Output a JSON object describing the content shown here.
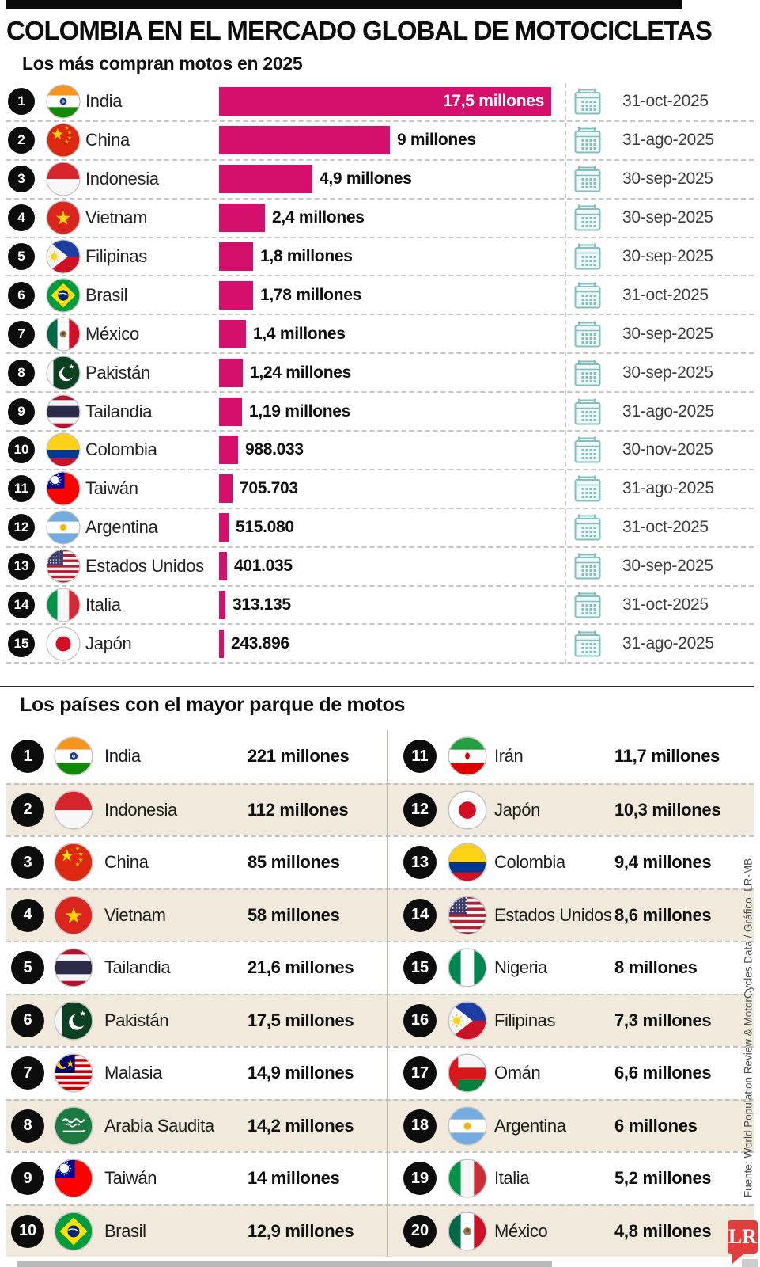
{
  "header": {
    "title": "COLOMBIA EN EL MERCADO GLOBAL DE MOTOCICLETAS"
  },
  "colors": {
    "bar": "#d4106c",
    "calendar_icon": "#7fc0c2",
    "row_alt_background": "#f0e9dc",
    "rank_badge": "#0c0c0c",
    "logo_red": "#e23d3d"
  },
  "chart_data": [
    {
      "type": "bar",
      "title": "Los más compran motos en 2025",
      "orientation": "horizontal",
      "value_axis_max": 17500000,
      "grid": false,
      "rows": [
        {
          "rank": 1,
          "country": "India",
          "flag": "india",
          "value": 17500000,
          "label": "17,5 millones",
          "label_inside": true,
          "date": "31-oct-2025"
        },
        {
          "rank": 2,
          "country": "China",
          "flag": "china",
          "value": 9000000,
          "label": "9 millones",
          "date": "31-ago-2025"
        },
        {
          "rank": 3,
          "country": "Indonesia",
          "flag": "indonesia",
          "value": 4900000,
          "label": "4,9 millones",
          "date": "30-sep-2025"
        },
        {
          "rank": 4,
          "country": "Vietnam",
          "flag": "vietnam",
          "value": 2400000,
          "label": "2,4 millones",
          "date": "30-sep-2025"
        },
        {
          "rank": 5,
          "country": "Filipinas",
          "flag": "philippines",
          "value": 1800000,
          "label": "1,8 millones",
          "date": "30-sep-2025"
        },
        {
          "rank": 6,
          "country": "Brasil",
          "flag": "brazil",
          "value": 1780000,
          "label": "1,78 millones",
          "date": "31-oct-2025"
        },
        {
          "rank": 7,
          "country": "México",
          "flag": "mexico",
          "value": 1400000,
          "label": "1,4 millones",
          "date": "30-sep-2025"
        },
        {
          "rank": 8,
          "country": "Pakistán",
          "flag": "pakistan",
          "value": 1240000,
          "label": "1,24 millones",
          "date": "30-sep-2025"
        },
        {
          "rank": 9,
          "country": "Tailandia",
          "flag": "thailand",
          "value": 1190000,
          "label": "1,19 millones",
          "date": "31-ago-2025"
        },
        {
          "rank": 10,
          "country": "Colombia",
          "flag": "colombia",
          "value": 988033,
          "label": "988.033",
          "date": "30-nov-2025"
        },
        {
          "rank": 11,
          "country": "Taiwán",
          "flag": "taiwan",
          "value": 705703,
          "label": "705.703",
          "date": "31-ago-2025"
        },
        {
          "rank": 12,
          "country": "Argentina",
          "flag": "argentina",
          "value": 515080,
          "label": "515.080",
          "date": "31-oct-2025"
        },
        {
          "rank": 13,
          "country": "Estados Unidos",
          "flag": "usa",
          "value": 401035,
          "label": "401.035",
          "date": "30-sep-2025"
        },
        {
          "rank": 14,
          "country": "Italia",
          "flag": "italy",
          "value": 313135,
          "label": "313.135",
          "date": "31-oct-2025"
        },
        {
          "rank": 15,
          "country": "Japón",
          "flag": "japan",
          "value": 243896,
          "label": "243.896",
          "date": "31-ago-2025"
        }
      ]
    },
    {
      "type": "table",
      "title": "Los países con el mayor parque de motos",
      "rows_left": [
        {
          "rank": 1,
          "country": "India",
          "flag": "india",
          "value_millions": 221,
          "label": "221 millones"
        },
        {
          "rank": 2,
          "country": "Indonesia",
          "flag": "indonesia",
          "value_millions": 112,
          "label": "112 millones"
        },
        {
          "rank": 3,
          "country": "China",
          "flag": "china",
          "value_millions": 85,
          "label": "85 millones"
        },
        {
          "rank": 4,
          "country": "Vietnam",
          "flag": "vietnam",
          "value_millions": 58,
          "label": "58 millones"
        },
        {
          "rank": 5,
          "country": "Tailandia",
          "flag": "thailand",
          "value_millions": 21.6,
          "label": "21,6 millones"
        },
        {
          "rank": 6,
          "country": "Pakistán",
          "flag": "pakistan",
          "value_millions": 17.5,
          "label": "17,5 millones"
        },
        {
          "rank": 7,
          "country": "Malasia",
          "flag": "malaysia",
          "value_millions": 14.9,
          "label": "14,9 millones"
        },
        {
          "rank": 8,
          "country": "Arabia Saudita",
          "flag": "saudi",
          "value_millions": 14.2,
          "label": "14,2 millones"
        },
        {
          "rank": 9,
          "country": "Taiwán",
          "flag": "taiwan",
          "value_millions": 14,
          "label": "14 millones"
        },
        {
          "rank": 10,
          "country": "Brasil",
          "flag": "brazil",
          "value_millions": 12.9,
          "label": "12,9 millones"
        }
      ],
      "rows_right": [
        {
          "rank": 11,
          "country": "Irán",
          "flag": "iran",
          "value_millions": 11.7,
          "label": "11,7 millones"
        },
        {
          "rank": 12,
          "country": "Japón",
          "flag": "japan",
          "value_millions": 10.3,
          "label": "10,3 millones"
        },
        {
          "rank": 13,
          "country": "Colombia",
          "flag": "colombia",
          "value_millions": 9.4,
          "label": "9,4 millones"
        },
        {
          "rank": 14,
          "country": "Estados Unidos",
          "flag": "usa",
          "value_millions": 8.6,
          "label": "8,6 millones"
        },
        {
          "rank": 15,
          "country": "Nigeria",
          "flag": "nigeria",
          "value_millions": 8,
          "label": "8 millones"
        },
        {
          "rank": 16,
          "country": "Filipinas",
          "flag": "philippines",
          "value_millions": 7.3,
          "label": "7,3 millones"
        },
        {
          "rank": 17,
          "country": "Omán",
          "flag": "oman",
          "value_millions": 6.6,
          "label": "6,6 millones"
        },
        {
          "rank": 18,
          "country": "Argentina",
          "flag": "argentina",
          "value_millions": 6,
          "label": "6 millones"
        },
        {
          "rank": 19,
          "country": "Italia",
          "flag": "italy",
          "value_millions": 5.2,
          "label": "5,2 millones"
        },
        {
          "rank": 20,
          "country": "México",
          "flag": "mexico",
          "value_millions": 4.8,
          "label": "4,8 millones"
        }
      ]
    }
  ],
  "footer": {
    "source": "Fuente: World Population Review & MotorCycles Data / Gráfico: LR-MB",
    "logo_text": "LR"
  }
}
